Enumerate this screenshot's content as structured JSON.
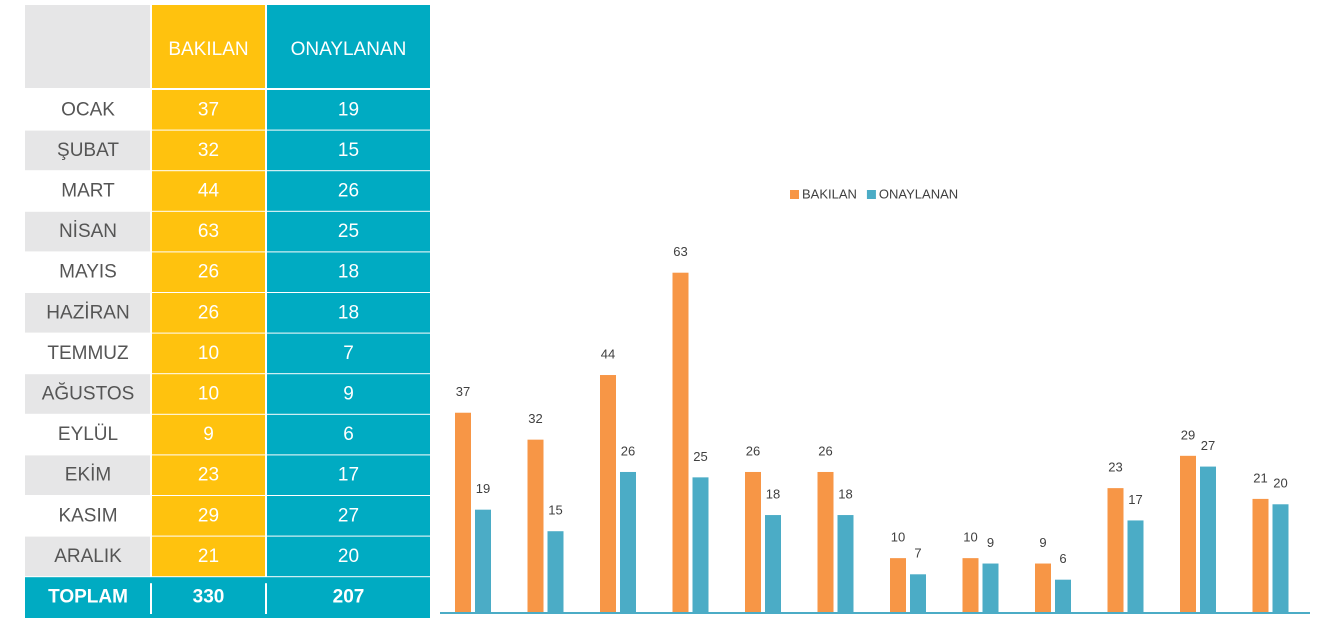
{
  "table": {
    "header": [
      "BAKILAN",
      "ONAYLANAN"
    ],
    "rows": [
      {
        "label": "OCAK",
        "values": [
          37,
          19
        ]
      },
      {
        "label": "ŞUBAT",
        "values": [
          32,
          15
        ]
      },
      {
        "label": "MART",
        "values": [
          44,
          26
        ]
      },
      {
        "label": "NİSAN",
        "values": [
          63,
          25
        ]
      },
      {
        "label": "MAYIS",
        "values": [
          26,
          18
        ]
      },
      {
        "label": "HAZİRAN",
        "values": [
          26,
          18
        ]
      },
      {
        "label": "TEMMUZ",
        "values": [
          10,
          7
        ]
      },
      {
        "label": "AĞUSTOS",
        "values": [
          10,
          9
        ]
      },
      {
        "label": "EYLÜL",
        "values": [
          9,
          6
        ]
      },
      {
        "label": "EKİM",
        "values": [
          23,
          17
        ]
      },
      {
        "label": "KASIM",
        "values": [
          29,
          27
        ]
      },
      {
        "label": "ARALIK",
        "values": [
          21,
          20
        ]
      }
    ],
    "total": {
      "label": "TOPLAM",
      "values": [
        330,
        207
      ]
    }
  },
  "chart_data": {
    "type": "bar",
    "categories": [
      null,
      null,
      null,
      null,
      null,
      null,
      null,
      null,
      null,
      null,
      null,
      null
    ],
    "series": [
      {
        "name": "BAKILAN",
        "color": "#f79646",
        "values": [
          37,
          32,
          44,
          63,
          26,
          26,
          10,
          10,
          9,
          23,
          29,
          21
        ]
      },
      {
        "name": "ONAYLANAN",
        "color": "#4bacc6",
        "values": [
          19,
          15,
          26,
          25,
          18,
          18,
          7,
          9,
          6,
          17,
          27,
          20
        ]
      }
    ],
    "ylim": [
      0,
      70
    ],
    "legend": "top"
  }
}
